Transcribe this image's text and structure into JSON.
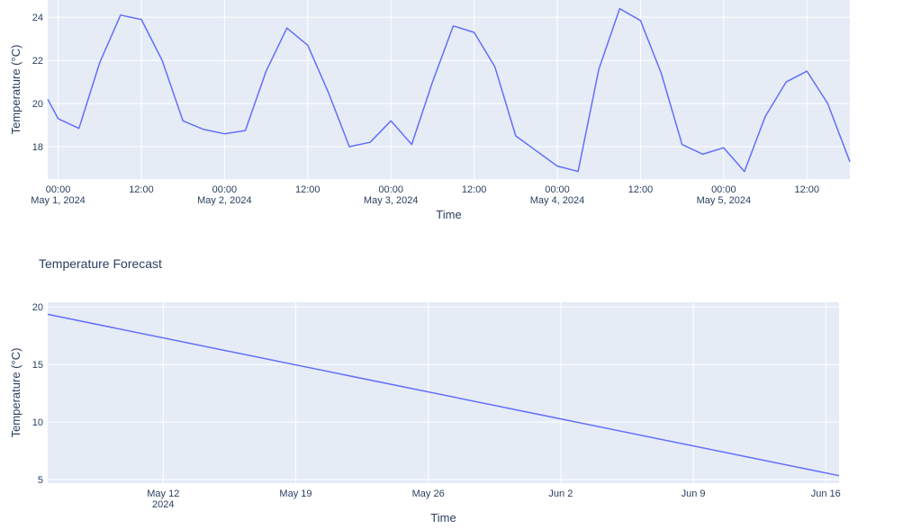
{
  "chart_data": [
    {
      "type": "line",
      "title": "",
      "xlabel": "Time",
      "ylabel": "Temperature (°C)",
      "grid": true,
      "x_ticks": [
        {
          "label": "00:00",
          "sub": "May 1, 2024",
          "hour": 0
        },
        {
          "label": "12:00",
          "sub": "",
          "hour": 12
        },
        {
          "label": "00:00",
          "sub": "May 2, 2024",
          "hour": 24
        },
        {
          "label": "12:00",
          "sub": "",
          "hour": 36
        },
        {
          "label": "00:00",
          "sub": "May 3, 2024",
          "hour": 48
        },
        {
          "label": "12:00",
          "sub": "",
          "hour": 60
        },
        {
          "label": "00:00",
          "sub": "May 4, 2024",
          "hour": 72
        },
        {
          "label": "12:00",
          "sub": "",
          "hour": 84
        },
        {
          "label": "00:00",
          "sub": "May 5, 2024",
          "hour": 96
        },
        {
          "label": "12:00",
          "sub": "",
          "hour": 108
        }
      ],
      "y_ticks": [
        18,
        20,
        22,
        24
      ],
      "xlim_hours": [
        -1.5,
        114.2
      ],
      "ylim": [
        16.5,
        24.8
      ],
      "series": [
        {
          "name": "",
          "x_hours": [
            -1.5,
            0,
            3,
            6,
            9,
            12,
            15,
            18,
            21,
            24,
            27,
            30,
            33,
            36,
            39,
            42,
            45,
            48,
            51,
            54,
            57,
            60,
            63,
            66,
            69,
            72,
            75,
            78,
            81,
            84,
            87,
            90,
            93,
            96,
            99,
            102,
            105,
            108,
            111,
            114.2
          ],
          "values": [
            20.2,
            19.3,
            18.85,
            21.9,
            24.1,
            23.9,
            22.0,
            19.2,
            18.8,
            18.6,
            18.75,
            21.5,
            23.5,
            22.7,
            20.5,
            18.0,
            18.2,
            19.2,
            18.1,
            21.0,
            23.6,
            23.3,
            21.7,
            18.5,
            17.8,
            17.1,
            16.85,
            21.6,
            24.4,
            23.85,
            21.4,
            18.1,
            17.65,
            17.95,
            16.85,
            19.4,
            21.0,
            21.5,
            20.0,
            17.3
          ]
        }
      ]
    },
    {
      "type": "line",
      "title": "Temperature Forecast",
      "xlabel": "Time",
      "ylabel": "Temperature (°C)",
      "grid": true,
      "x_ticks": [
        {
          "label": "May 12",
          "sub": "2024",
          "day": 0
        },
        {
          "label": "May 19",
          "sub": "",
          "day": 7
        },
        {
          "label": "May 26",
          "sub": "",
          "day": 14
        },
        {
          "label": "Jun 2",
          "sub": "",
          "day": 21
        },
        {
          "label": "Jun 9",
          "sub": "",
          "day": 28
        },
        {
          "label": "Jun 16",
          "sub": "",
          "day": 35
        }
      ],
      "y_ticks": [
        5,
        10,
        15,
        20
      ],
      "xlim_days": [
        -6.1,
        35.7
      ],
      "ylim": [
        4.7,
        20.4
      ],
      "series": [
        {
          "name": "",
          "x_days": [
            -6.1,
            35.7
          ],
          "values": [
            19.35,
            5.35
          ]
        }
      ]
    }
  ]
}
